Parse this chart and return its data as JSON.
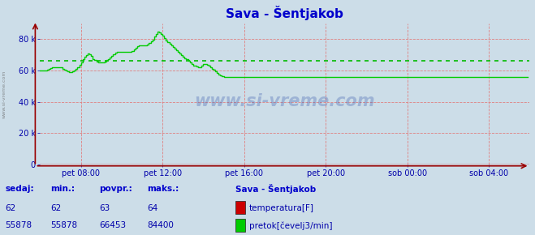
{
  "title": "Sava - Šentjakob",
  "bg_color": "#ccdde8",
  "plot_bg_color": "#ccdde8",
  "line_color_flow": "#00cc00",
  "line_color_temp": "#cc0000",
  "avg_line_color": "#00bb00",
  "avg_value": 66453,
  "ymax": 90000,
  "ymin": 0,
  "yticks": [
    0,
    20000,
    40000,
    60000,
    80000
  ],
  "ytick_labels": [
    "0",
    "20 k",
    "40 k",
    "60 k",
    "80 k"
  ],
  "xtick_labels": [
    "pet 08:00",
    "pet 12:00",
    "pet 16:00",
    "pet 20:00",
    "sob 00:00",
    "sob 04:00"
  ],
  "label_color": "#0000aa",
  "title_color": "#0000cc",
  "watermark": "www.si-vreme.com",
  "bottom_labels": [
    "sedaj:",
    "min.:",
    "povpr.:",
    "maks.:"
  ],
  "bottom_values_temp": [
    "62",
    "62",
    "63",
    "64"
  ],
  "bottom_values_flow": [
    "55878",
    "55878",
    "66453",
    "84400"
  ],
  "legend_title": "Sava - Šentjakob",
  "legend_temp": "temperatura[F]",
  "legend_flow": "pretok[čevelj3/min]",
  "flow_data": [
    60000,
    60000,
    60000,
    60000,
    60500,
    61000,
    61500,
    62000,
    62000,
    62000,
    62000,
    62000,
    62000,
    61000,
    60500,
    60000,
    59500,
    59000,
    59000,
    59500,
    60000,
    61000,
    62000,
    63500,
    65000,
    67000,
    69000,
    70000,
    71000,
    70500,
    69500,
    67500,
    66500,
    65500,
    65000,
    65000,
    65000,
    65000,
    65500,
    66500,
    67500,
    68500,
    69500,
    70500,
    71500,
    72000,
    72000,
    72000,
    72000,
    72000,
    72000,
    72000,
    72000,
    72000,
    72500,
    73500,
    74500,
    75500,
    76000,
    76000,
    76000,
    76000,
    76000,
    76500,
    77500,
    78500,
    79500,
    81500,
    83500,
    85000,
    84500,
    83500,
    82000,
    80500,
    79000,
    78000,
    77000,
    76000,
    75000,
    74000,
    73000,
    72000,
    71000,
    70000,
    69000,
    68000,
    67000,
    66000,
    65000,
    64000,
    63000,
    63000,
    62500,
    62000,
    62000,
    63000,
    64000,
    64000,
    63500,
    63000,
    62000,
    61000,
    60500,
    59500,
    58500,
    57500,
    57000,
    56500,
    56000,
    56000,
    56000,
    56000,
    55878,
    55878,
    55878,
    55878,
    55878,
    55878,
    55878,
    55878,
    55878,
    55878,
    55878,
    55878,
    55878,
    55878,
    55878,
    55878,
    55878,
    55878,
    55878,
    55878,
    55878,
    55878,
    55878,
    55878,
    55878,
    55878,
    55878,
    55878,
    55878,
    55878,
    55878,
    55878,
    55878,
    55878,
    55878,
    55878,
    55878,
    55878,
    55878,
    55878,
    55878,
    55878,
    55878,
    55878,
    55878,
    55878,
    55878,
    55878,
    55878,
    55878,
    55878,
    55878,
    55878,
    55878,
    55878,
    55878,
    55878,
    55878,
    55878,
    55878,
    55878,
    55878,
    55878,
    55878,
    55878,
    55878,
    55878,
    55878,
    55878,
    55878,
    55878,
    55878,
    55878,
    55878,
    55878,
    55878,
    55878,
    55878,
    55878,
    55878,
    55878,
    55878,
    55878,
    55878,
    55878,
    55878,
    55878,
    55878,
    55878,
    55878,
    55878,
    55878,
    55878,
    55878,
    55878,
    55878,
    55878,
    55878,
    55878,
    55878,
    55878,
    55878,
    55878,
    55878,
    55878,
    55878,
    55878,
    55878,
    55878,
    55878,
    55878,
    55878,
    55878,
    55878,
    55878,
    55878,
    55878,
    55878,
    55878,
    55878,
    55878,
    55878,
    55878,
    55878,
    55878,
    55878,
    55878,
    55878,
    55878,
    55878,
    55878,
    55878,
    55878,
    55878,
    55878,
    55878,
    55878,
    55878,
    55878,
    55878,
    55878,
    55878,
    55878,
    55878,
    55878,
    55878,
    55878,
    55878,
    55878,
    55878,
    55878,
    55878,
    55878,
    55878,
    55878,
    55878,
    55878,
    55878,
    55878,
    55878,
    55878,
    55878,
    55878,
    55878,
    55878,
    55878,
    55878,
    55878,
    55878,
    55878,
    55878,
    55878,
    55878,
    55878,
    55878,
    55878
  ],
  "n_points": 288,
  "x_tick_positions": [
    24,
    72,
    120,
    168,
    216,
    264
  ],
  "vgrid_positions": [
    24,
    72,
    120,
    168,
    216,
    264
  ],
  "figsize": [
    6.59,
    2.9
  ],
  "dpi": 100
}
